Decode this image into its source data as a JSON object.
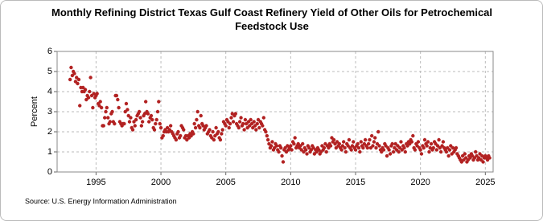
{
  "chart_data": {
    "type": "scatter",
    "title": "Monthly Refining District Texas Gulf Coast Refinery Yield of Other Oils for Petrochemical Feedstock Use",
    "ylabel": "Percent",
    "source": "Source: U.S. Energy Information Administration",
    "xlim": [
      1992,
      2025.6
    ],
    "ylim": [
      0,
      6
    ],
    "xticks": [
      1995,
      2000,
      2005,
      2010,
      2015,
      2020,
      2025
    ],
    "yticks": [
      0,
      1,
      2,
      3,
      4,
      5,
      6
    ],
    "grid": true,
    "color": "#b22222",
    "x": [
      1993.0,
      1993.08,
      1993.17,
      1993.25,
      1993.33,
      1993.42,
      1993.5,
      1993.58,
      1993.67,
      1993.75,
      1993.83,
      1993.92,
      1994.0,
      1994.08,
      1994.17,
      1994.25,
      1994.33,
      1994.42,
      1994.5,
      1994.58,
      1994.67,
      1994.75,
      1994.83,
      1994.92,
      1995.0,
      1995.08,
      1995.17,
      1995.25,
      1995.33,
      1995.42,
      1995.5,
      1995.58,
      1995.67,
      1995.75,
      1995.83,
      1995.92,
      1996.0,
      1996.08,
      1996.17,
      1996.25,
      1996.33,
      1996.42,
      1996.5,
      1996.58,
      1996.67,
      1996.75,
      1996.83,
      1996.92,
      1997.0,
      1997.08,
      1997.17,
      1997.25,
      1997.33,
      1997.42,
      1997.5,
      1997.58,
      1997.67,
      1997.75,
      1997.83,
      1997.92,
      1998.0,
      1998.08,
      1998.17,
      1998.25,
      1998.33,
      1998.42,
      1998.5,
      1998.58,
      1998.67,
      1998.75,
      1998.83,
      1998.92,
      1999.0,
      1999.08,
      1999.17,
      1999.25,
      1999.33,
      1999.42,
      1999.5,
      1999.58,
      1999.67,
      1999.75,
      1999.83,
      1999.92,
      2000.0,
      2000.08,
      2000.17,
      2000.25,
      2000.33,
      2000.42,
      2000.5,
      2000.58,
      2000.67,
      2000.75,
      2000.83,
      2000.92,
      2001.0,
      2001.08,
      2001.17,
      2001.25,
      2001.33,
      2001.42,
      2001.5,
      2001.58,
      2001.67,
      2001.75,
      2001.83,
      2001.92,
      2002.0,
      2002.08,
      2002.17,
      2002.25,
      2002.33,
      2002.42,
      2002.5,
      2002.58,
      2002.67,
      2002.75,
      2002.83,
      2002.92,
      2003.0,
      2003.08,
      2003.17,
      2003.25,
      2003.33,
      2003.42,
      2003.5,
      2003.58,
      2003.67,
      2003.75,
      2003.83,
      2003.92,
      2004.0,
      2004.08,
      2004.17,
      2004.25,
      2004.33,
      2004.42,
      2004.5,
      2004.58,
      2004.67,
      2004.75,
      2004.83,
      2004.92,
      2005.0,
      2005.08,
      2005.17,
      2005.25,
      2005.33,
      2005.42,
      2005.5,
      2005.58,
      2005.67,
      2005.75,
      2005.83,
      2005.92,
      2006.0,
      2006.08,
      2006.17,
      2006.25,
      2006.33,
      2006.42,
      2006.5,
      2006.58,
      2006.67,
      2006.75,
      2006.83,
      2006.92,
      2007.0,
      2007.08,
      2007.17,
      2007.25,
      2007.33,
      2007.42,
      2007.5,
      2007.58,
      2007.67,
      2007.75,
      2007.83,
      2007.92,
      2008.0,
      2008.08,
      2008.17,
      2008.25,
      2008.33,
      2008.42,
      2008.5,
      2008.58,
      2008.67,
      2008.75,
      2008.83,
      2008.92,
      2009.0,
      2009.08,
      2009.17,
      2009.25,
      2009.33,
      2009.42,
      2009.5,
      2009.58,
      2009.67,
      2009.75,
      2009.83,
      2009.92,
      2010.0,
      2010.08,
      2010.17,
      2010.25,
      2010.33,
      2010.42,
      2010.5,
      2010.58,
      2010.67,
      2010.75,
      2010.83,
      2010.92,
      2011.0,
      2011.08,
      2011.17,
      2011.25,
      2011.33,
      2011.42,
      2011.5,
      2011.58,
      2011.67,
      2011.75,
      2011.83,
      2011.92,
      2012.0,
      2012.08,
      2012.17,
      2012.25,
      2012.33,
      2012.42,
      2012.5,
      2012.58,
      2012.67,
      2012.75,
      2012.83,
      2012.92,
      2013.0,
      2013.08,
      2013.17,
      2013.25,
      2013.33,
      2013.42,
      2013.5,
      2013.58,
      2013.67,
      2013.75,
      2013.83,
      2013.92,
      2014.0,
      2014.08,
      2014.17,
      2014.25,
      2014.33,
      2014.42,
      2014.5,
      2014.58,
      2014.67,
      2014.75,
      2014.83,
      2014.92,
      2015.0,
      2015.08,
      2015.17,
      2015.25,
      2015.33,
      2015.42,
      2015.5,
      2015.58,
      2015.67,
      2015.75,
      2015.83,
      2015.92,
      2016.0,
      2016.08,
      2016.17,
      2016.25,
      2016.33,
      2016.42,
      2016.5,
      2016.58,
      2016.67,
      2016.75,
      2016.83,
      2016.92,
      2017.0,
      2017.08,
      2017.17,
      2017.25,
      2017.33,
      2017.42,
      2017.5,
      2017.58,
      2017.67,
      2017.75,
      2017.83,
      2017.92,
      2018.0,
      2018.08,
      2018.17,
      2018.25,
      2018.33,
      2018.42,
      2018.5,
      2018.58,
      2018.67,
      2018.75,
      2018.83,
      2018.92,
      2019.0,
      2019.08,
      2019.17,
      2019.25,
      2019.33,
      2019.42,
      2019.5,
      2019.58,
      2019.67,
      2019.75,
      2019.83,
      2019.92,
      2020.0,
      2020.08,
      2020.17,
      2020.25,
      2020.33,
      2020.42,
      2020.5,
      2020.58,
      2020.67,
      2020.75,
      2020.83,
      2020.92,
      2021.0,
      2021.08,
      2021.17,
      2021.25,
      2021.33,
      2021.42,
      2021.5,
      2021.58,
      2021.67,
      2021.75,
      2021.83,
      2021.92,
      2022.0,
      2022.08,
      2022.17,
      2022.25,
      2022.33,
      2022.42,
      2022.5,
      2022.58,
      2022.67,
      2022.75,
      2022.83,
      2022.92,
      2023.0,
      2023.08,
      2023.17,
      2023.25,
      2023.33,
      2023.42,
      2023.5,
      2023.58,
      2023.67,
      2023.75,
      2023.83,
      2023.92,
      2024.0,
      2024.08,
      2024.17,
      2024.25,
      2024.33,
      2024.42,
      2024.5,
      2024.58,
      2024.67,
      2024.75,
      2024.83,
      2024.92,
      2025.0,
      2025.08,
      2025.17,
      2025.25,
      2025.33
    ],
    "values": [
      4.6,
      5.2,
      4.8,
      5.0,
      4.9,
      4.5,
      4.7,
      4.4,
      4.6,
      3.3,
      4.2,
      4.0,
      4.2,
      4.0,
      4.1,
      3.6,
      3.8,
      3.7,
      4.0,
      4.7,
      3.8,
      3.2,
      3.9,
      3.7,
      3.8,
      3.9,
      3.4,
      3.3,
      3.5,
      3.2,
      2.3,
      2.3,
      2.7,
      3.0,
      3.2,
      2.7,
      2.4,
      2.5,
      2.9,
      3.0,
      2.5,
      2.4,
      3.8,
      3.8,
      3.6,
      3.2,
      2.5,
      2.4,
      2.3,
      2.4,
      2.4,
      3.0,
      3.4,
      3.1,
      2.8,
      2.5,
      2.7,
      2.2,
      2.1,
      2.5,
      2.3,
      2.6,
      2.8,
      2.9,
      3.0,
      2.7,
      2.3,
      2.5,
      2.8,
      2.9,
      3.5,
      3.0,
      2.9,
      2.5,
      2.7,
      2.8,
      2.6,
      2.2,
      2.1,
      2.4,
      2.6,
      3.0,
      3.5,
      2.4,
      2.2,
      1.7,
      1.8,
      2.0,
      2.1,
      2.0,
      2.2,
      2.0,
      2.1,
      2.3,
      2.0,
      1.9,
      1.8,
      1.7,
      1.6,
      1.9,
      2.0,
      1.7,
      1.8,
      2.3,
      2.2,
      2.1,
      1.7,
      1.8,
      1.6,
      1.8,
      1.7,
      1.9,
      1.8,
      2.0,
      1.9,
      2.4,
      2.2,
      2.6,
      3.0,
      2.3,
      2.2,
      2.8,
      2.4,
      2.3,
      2.1,
      2.2,
      2.3,
      1.9,
      2.0,
      2.1,
      1.8,
      1.7,
      2.0,
      1.6,
      1.8,
      2.2,
      1.9,
      2.0,
      1.7,
      1.6,
      1.9,
      2.1,
      2.5,
      2.4,
      2.3,
      2.6,
      2.5,
      2.2,
      2.4,
      2.7,
      2.9,
      2.5,
      2.8,
      2.9,
      2.4,
      2.3,
      2.2,
      2.5,
      2.7,
      2.3,
      2.4,
      2.1,
      2.6,
      2.4,
      2.2,
      2.5,
      2.3,
      2.6,
      2.4,
      2.2,
      2.5,
      2.3,
      2.1,
      2.4,
      2.6,
      2.2,
      2.5,
      2.4,
      2.3,
      2.7,
      2.1,
      2.0,
      1.8,
      1.6,
      1.4,
      1.2,
      1.3,
      1.5,
      1.1,
      1.2,
      1.4,
      1.3,
      1.1,
      1.0,
      1.3,
      1.2,
      0.8,
      0.5,
      1.1,
      1.2,
      1.0,
      1.3,
      1.1,
      1.2,
      1.3,
      1.1,
      1.5,
      1.4,
      1.7,
      1.2,
      1.3,
      1.4,
      1.2,
      1.3,
      1.1,
      1.4,
      1.0,
      1.2,
      1.1,
      0.9,
      1.3,
      1.2,
      1.0,
      1.1,
      1.3,
      1.2,
      0.9,
      1.1,
      1.0,
      1.2,
      1.1,
      0.9,
      1.0,
      1.3,
      1.1,
      1.2,
      1.4,
      1.0,
      1.3,
      1.2,
      1.4,
      1.3,
      1.7,
      1.5,
      1.6,
      1.4,
      1.2,
      1.5,
      1.3,
      1.4,
      1.2,
      1.1,
      1.3,
      1.5,
      1.2,
      1.0,
      1.4,
      1.3,
      1.6,
      1.2,
      1.1,
      1.3,
      1.5,
      1.2,
      1.1,
      1.3,
      1.4,
      1.2,
      1.0,
      1.5,
      1.3,
      1.2,
      1.4,
      1.6,
      1.3,
      1.2,
      1.4,
      1.6,
      1.2,
      1.8,
      1.3,
      1.5,
      1.7,
      1.2,
      1.4,
      2.0,
      1.3,
      1.1,
      1.0,
      1.2,
      1.1,
      1.4,
      1.3,
      0.8,
      1.2,
      1.1,
      0.9,
      1.3,
      1.4,
      1.0,
      1.2,
      1.4,
      1.1,
      1.3,
      1.0,
      1.2,
      1.5,
      1.1,
      1.3,
      1.2,
      1.0,
      1.4,
      1.3,
      1.5,
      1.4,
      1.6,
      1.5,
      1.8,
      1.2,
      1.1,
      1.4,
      1.3,
      1.5,
      1.2,
      1.1,
      0.9,
      1.3,
      1.2,
      1.6,
      1.4,
      1.3,
      1.5,
      1.0,
      1.2,
      1.4,
      1.1,
      1.2,
      1.5,
      1.4,
      1.1,
      1.3,
      1.6,
      1.2,
      1.0,
      1.3,
      1.5,
      1.2,
      1.1,
      1.0,
      1.2,
      0.8,
      1.1,
      1.3,
      0.9,
      1.2,
      1.0,
      1.1,
      1.2,
      0.9,
      0.8,
      0.7,
      0.6,
      0.5,
      0.8,
      0.6,
      0.9,
      0.7,
      0.5,
      0.6,
      0.8,
      0.7,
      0.9,
      0.8,
      0.6,
      0.7,
      1.0,
      0.8,
      0.6,
      0.7,
      0.9,
      0.6,
      0.8,
      0.5,
      0.7,
      0.8,
      0.7,
      0.6,
      0.8,
      0.7
    ]
  }
}
